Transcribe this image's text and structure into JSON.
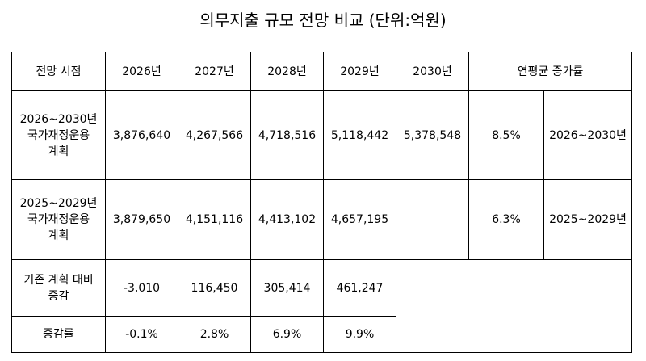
{
  "title": "의무지출 규모 전망 비교 (단위:억원)",
  "header": {
    "label": "전망 시점",
    "years": [
      "2026년",
      "2027년",
      "2028년",
      "2029년",
      "2030년"
    ],
    "cagr": "연평균 증가률"
  },
  "plan_2026": {
    "label": "2026~2030년\n국가재정운용\n계획",
    "values": [
      "3,876,640",
      "4,267,566",
      "4,718,516",
      "5,118,442",
      "5,378,548"
    ],
    "cagr_rate": "8.5%",
    "cagr_period": "2026~2030년"
  },
  "plan_2025": {
    "label": "2025~2029년\n국가재정운용\n계획",
    "values": [
      "3,879,650",
      "4,151,116",
      "4,413,102",
      "4,657,195"
    ],
    "cagr_rate": "6.3%",
    "cagr_period": "2025~2029년"
  },
  "diff": {
    "label": "기존 계획 대비\n증감",
    "values": [
      "-3,010",
      "116,450",
      "305,414",
      "461,247"
    ]
  },
  "rate": {
    "label": "증감률",
    "values": [
      "-0.1%",
      "2.8%",
      "6.9%",
      "9.9%"
    ]
  }
}
